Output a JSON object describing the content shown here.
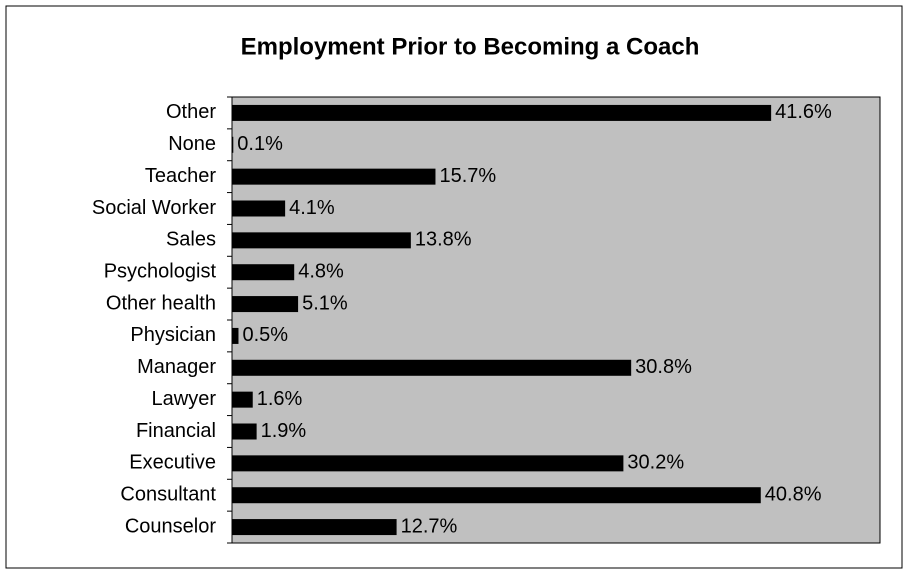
{
  "chart_data": {
    "type": "bar",
    "orientation": "horizontal",
    "title": "Employment Prior to Becoming a Coach",
    "categories": [
      "Other",
      "None",
      "Teacher",
      "Social Worker",
      "Sales",
      "Psychologist",
      "Other health",
      "Physician",
      "Manager",
      "Lawyer",
      "Financial",
      "Executive",
      "Consultant",
      "Counselor"
    ],
    "values": [
      41.6,
      0.1,
      15.7,
      4.1,
      13.8,
      4.8,
      5.1,
      0.5,
      30.8,
      1.6,
      1.9,
      30.2,
      40.8,
      12.7
    ],
    "value_labels": [
      "41.6%",
      "0.1%",
      "15.7%",
      "4.1%",
      "13.8%",
      "4.8%",
      "5.1%",
      "0.5%",
      "30.8%",
      "1.6%",
      "1.9%",
      "30.2%",
      "40.8%",
      "12.7%"
    ],
    "color": "#000000",
    "plot_background": "#c0c0c0",
    "xlim": [
      0,
      50
    ]
  }
}
